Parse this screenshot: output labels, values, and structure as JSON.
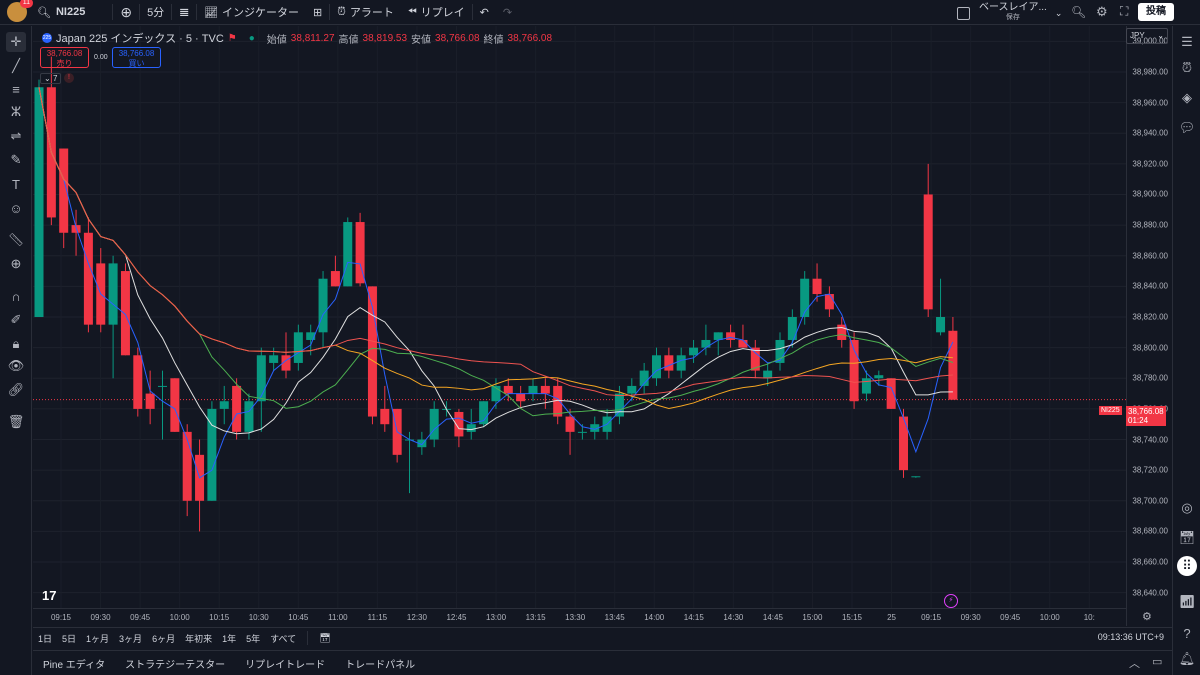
{
  "toolbar": {
    "notifications": "11",
    "symbol": "NI225",
    "interval": "5分",
    "indicators": "インジケーター",
    "alert": "アラート",
    "replay": "リプレイ",
    "layout_name": "ベースレイア...",
    "layout_saved": "保存",
    "post": "投稿"
  },
  "legend": {
    "name": "Japan 225 インデックス · 5 · TVC",
    "open_label": "始値",
    "open": "38,811.27",
    "high_label": "高値",
    "high": "38,819.53",
    "low_label": "安値",
    "low": "38,766.08",
    "close_label": "終値",
    "close": "38,766.08",
    "sell_price": "38,766.08",
    "sell_label": "売り",
    "spread": "0.00",
    "buy_price": "38,766.08",
    "buy_label": "買い",
    "indicator_count": "7"
  },
  "price_scale": {
    "currency": "JPY",
    "ticks": [
      "39,000.00",
      "38,980.00",
      "38,960.00",
      "38,940.00",
      "38,920.00",
      "38,900.00",
      "38,880.00",
      "38,860.00",
      "38,840.00",
      "38,820.00",
      "38,800.00",
      "38,780.00",
      "38,760.00",
      "38,740.00",
      "38,720.00",
      "38,700.00",
      "38,680.00",
      "38,660.00",
      "38,640.00"
    ],
    "current_symbol": "NI225",
    "current_price": "38,766.08",
    "countdown": "01:24"
  },
  "time_axis": [
    "09:15",
    "09:30",
    "09:45",
    "10:00",
    "10:15",
    "10:30",
    "10:45",
    "11:00",
    "11:15",
    "12:30",
    "12:45",
    "13:00",
    "13:15",
    "13:30",
    "13:45",
    "14:00",
    "14:15",
    "14:30",
    "14:45",
    "15:00",
    "15:15",
    "25",
    "09:15",
    "09:30",
    "09:45",
    "10:00",
    "10:"
  ],
  "ranges": [
    "1日",
    "5日",
    "1ヶ月",
    "3ヶ月",
    "6ヶ月",
    "年初来",
    "1年",
    "5年",
    "すべて"
  ],
  "clock": "09:13:36 UTC+9",
  "bottom_tabs": [
    "Pine エディタ",
    "ストラテジーテスター",
    "リプレイトレード",
    "トレードパネル"
  ],
  "colors": {
    "up": "#089981",
    "down": "#f23645",
    "background": "#131722"
  },
  "chart_data": {
    "type": "candlestick",
    "ylim": [
      38630,
      39010
    ],
    "candles": [
      {
        "o": 38820,
        "h": 38975,
        "l": 38820,
        "c": 38970
      },
      {
        "o": 38970,
        "h": 38990,
        "l": 38880,
        "c": 38885
      },
      {
        "o": 38930,
        "h": 38930,
        "l": 38865,
        "c": 38875
      },
      {
        "o": 38880,
        "h": 38890,
        "l": 38860,
        "c": 38875
      },
      {
        "o": 38875,
        "h": 38885,
        "l": 38810,
        "c": 38815
      },
      {
        "o": 38855,
        "h": 38865,
        "l": 38810,
        "c": 38815
      },
      {
        "o": 38815,
        "h": 38860,
        "l": 38780,
        "c": 38855
      },
      {
        "o": 38850,
        "h": 38855,
        "l": 38795,
        "c": 38795
      },
      {
        "o": 38795,
        "h": 38800,
        "l": 38755,
        "c": 38760
      },
      {
        "o": 38770,
        "h": 38785,
        "l": 38750,
        "c": 38760
      },
      {
        "o": 38775,
        "h": 38785,
        "l": 38740,
        "c": 38775
      },
      {
        "o": 38780,
        "h": 38780,
        "l": 38745,
        "c": 38745
      },
      {
        "o": 38745,
        "h": 38750,
        "l": 38690,
        "c": 38700
      },
      {
        "o": 38730,
        "h": 38740,
        "l": 38680,
        "c": 38700
      },
      {
        "o": 38700,
        "h": 38765,
        "l": 38700,
        "c": 38760
      },
      {
        "o": 38760,
        "h": 38775,
        "l": 38750,
        "c": 38765
      },
      {
        "o": 38775,
        "h": 38780,
        "l": 38740,
        "c": 38745
      },
      {
        "o": 38745,
        "h": 38770,
        "l": 38740,
        "c": 38765
      },
      {
        "o": 38765,
        "h": 38800,
        "l": 38745,
        "c": 38795
      },
      {
        "o": 38790,
        "h": 38800,
        "l": 38785,
        "c": 38795
      },
      {
        "o": 38795,
        "h": 38810,
        "l": 38780,
        "c": 38785
      },
      {
        "o": 38790,
        "h": 38815,
        "l": 38785,
        "c": 38810
      },
      {
        "o": 38805,
        "h": 38815,
        "l": 38795,
        "c": 38810
      },
      {
        "o": 38810,
        "h": 38850,
        "l": 38800,
        "c": 38845
      },
      {
        "o": 38850,
        "h": 38860,
        "l": 38840,
        "c": 38840
      },
      {
        "o": 38840,
        "h": 38885,
        "l": 38840,
        "c": 38882
      },
      {
        "o": 38882,
        "h": 38888,
        "l": 38840,
        "c": 38842
      },
      {
        "o": 38840,
        "h": 38840,
        "l": 38750,
        "c": 38755
      },
      {
        "o": 38760,
        "h": 38775,
        "l": 38745,
        "c": 38750
      },
      {
        "o": 38760,
        "h": 38760,
        "l": 38725,
        "c": 38730
      },
      {
        "o": 38740,
        "h": 38745,
        "l": 38705,
        "c": 38740
      },
      {
        "o": 38735,
        "h": 38745,
        "l": 38730,
        "c": 38740
      },
      {
        "o": 38740,
        "h": 38765,
        "l": 38735,
        "c": 38760
      },
      {
        "o": 38760,
        "h": 38765,
        "l": 38755,
        "c": 38760
      },
      {
        "o": 38758,
        "h": 38760,
        "l": 38735,
        "c": 38742
      },
      {
        "o": 38745,
        "h": 38760,
        "l": 38740,
        "c": 38750
      },
      {
        "o": 38750,
        "h": 38765,
        "l": 38748,
        "c": 38765
      },
      {
        "o": 38765,
        "h": 38780,
        "l": 38760,
        "c": 38775
      },
      {
        "o": 38775,
        "h": 38780,
        "l": 38765,
        "c": 38770
      },
      {
        "o": 38770,
        "h": 38775,
        "l": 38760,
        "c": 38765
      },
      {
        "o": 38770,
        "h": 38780,
        "l": 38765,
        "c": 38775
      },
      {
        "o": 38775,
        "h": 38780,
        "l": 38760,
        "c": 38770
      },
      {
        "o": 38775,
        "h": 38780,
        "l": 38750,
        "c": 38755
      },
      {
        "o": 38755,
        "h": 38760,
        "l": 38730,
        "c": 38745
      },
      {
        "o": 38745,
        "h": 38750,
        "l": 38740,
        "c": 38745
      },
      {
        "o": 38745,
        "h": 38755,
        "l": 38740,
        "c": 38750
      },
      {
        "o": 38745,
        "h": 38760,
        "l": 38740,
        "c": 38755
      },
      {
        "o": 38755,
        "h": 38775,
        "l": 38750,
        "c": 38770
      },
      {
        "o": 38770,
        "h": 38780,
        "l": 38765,
        "c": 38775
      },
      {
        "o": 38775,
        "h": 38790,
        "l": 38770,
        "c": 38785
      },
      {
        "o": 38780,
        "h": 38800,
        "l": 38775,
        "c": 38795
      },
      {
        "o": 38795,
        "h": 38800,
        "l": 38780,
        "c": 38785
      },
      {
        "o": 38785,
        "h": 38800,
        "l": 38780,
        "c": 38795
      },
      {
        "o": 38795,
        "h": 38805,
        "l": 38790,
        "c": 38800
      },
      {
        "o": 38800,
        "h": 38815,
        "l": 38795,
        "c": 38805
      },
      {
        "o": 38805,
        "h": 38810,
        "l": 38795,
        "c": 38810
      },
      {
        "o": 38810,
        "h": 38815,
        "l": 38800,
        "c": 38805
      },
      {
        "o": 38805,
        "h": 38815,
        "l": 38800,
        "c": 38800
      },
      {
        "o": 38800,
        "h": 38805,
        "l": 38780,
        "c": 38785
      },
      {
        "o": 38780,
        "h": 38790,
        "l": 38775,
        "c": 38785
      },
      {
        "o": 38790,
        "h": 38810,
        "l": 38785,
        "c": 38805
      },
      {
        "o": 38805,
        "h": 38825,
        "l": 38800,
        "c": 38820
      },
      {
        "o": 38820,
        "h": 38850,
        "l": 38815,
        "c": 38845
      },
      {
        "o": 38845,
        "h": 38855,
        "l": 38830,
        "c": 38835
      },
      {
        "o": 38835,
        "h": 38840,
        "l": 38820,
        "c": 38825
      },
      {
        "o": 38815,
        "h": 38820,
        "l": 38800,
        "c": 38805
      },
      {
        "o": 38805,
        "h": 38810,
        "l": 38760,
        "c": 38765
      },
      {
        "o": 38770,
        "h": 38785,
        "l": 38765,
        "c": 38780
      },
      {
        "o": 38780,
        "h": 38785,
        "l": 38775,
        "c": 38782
      },
      {
        "o": 38780,
        "h": 38780,
        "l": 38760,
        "c": 38760
      },
      {
        "o": 38755,
        "h": 38760,
        "l": 38715,
        "c": 38720
      },
      {
        "o": 38716,
        "h": 38716,
        "l": 38715,
        "c": 38716
      },
      {
        "o": 38900,
        "h": 38920,
        "l": 38820,
        "c": 38825
      },
      {
        "o": 38810,
        "h": 38845,
        "l": 38808,
        "c": 38820
      },
      {
        "o": 38811,
        "h": 38820,
        "l": 38766,
        "c": 38766
      }
    ]
  }
}
